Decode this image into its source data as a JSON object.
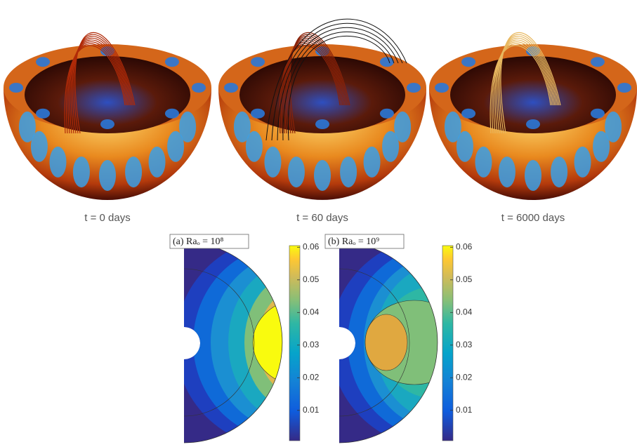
{
  "snapshots": [
    {
      "caption": "t = 0 days"
    },
    {
      "caption": "t = 60 days"
    },
    {
      "caption": "t = 6000 days"
    }
  ],
  "plots": [
    {
      "label": "(a) Raₒ = 10⁸",
      "colorbar": {
        "clim": [
          0.0007,
          0.0605
        ],
        "ticks": [
          0.01,
          0.02,
          0.03,
          0.04,
          0.05,
          0.06
        ]
      }
    },
    {
      "label": "(b) Raₒ = 10⁹",
      "colorbar": {
        "clim": [
          0.0007,
          0.0605
        ],
        "ticks": [
          0.01,
          0.02,
          0.03,
          0.04,
          0.05,
          0.06
        ]
      }
    }
  ]
}
